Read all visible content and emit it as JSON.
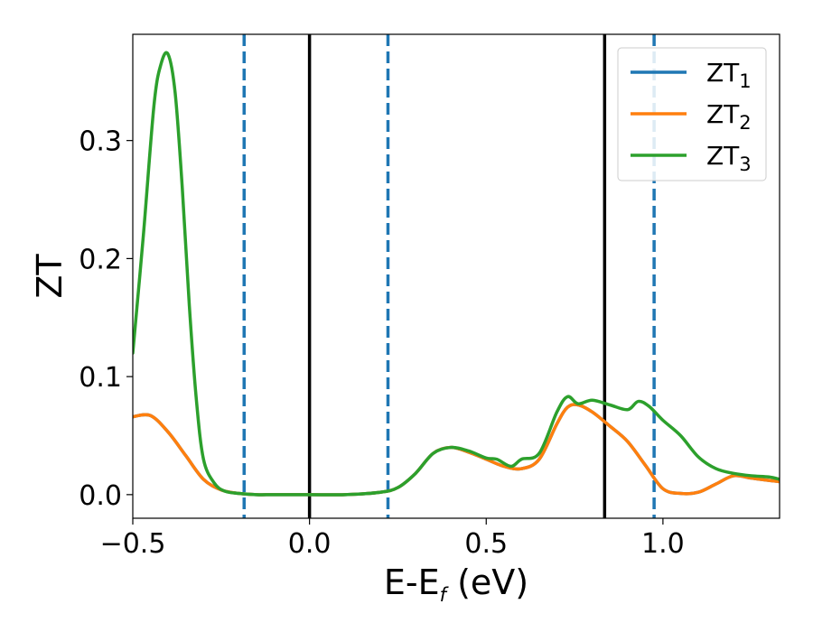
{
  "chart_data": {
    "type": "line",
    "xlabel": "E-E",
    "xlabel_sub": "f",
    "xlabel_unit": " (eV)",
    "ylabel": "ZT",
    "xlim": [
      -0.5,
      1.33
    ],
    "ylim": [
      -0.02,
      0.39
    ],
    "grid": false,
    "legend_position": "top-right",
    "x_ticks": [
      -0.5,
      0.0,
      0.5,
      1.0
    ],
    "x_tick_labels": [
      "−0.5",
      "0.0",
      "0.5",
      "1.0"
    ],
    "y_ticks": [
      0.0,
      0.1,
      0.2,
      0.3
    ],
    "y_tick_labels": [
      "0.0",
      "0.1",
      "0.2",
      "0.3"
    ],
    "series": [
      {
        "name": "ZT",
        "sub": "1",
        "color": "#1f77b4",
        "x": [
          -0.5,
          -0.45,
          -0.4,
          -0.35,
          -0.3,
          -0.25,
          -0.2,
          -0.15,
          -0.1,
          0,
          0.1,
          0.2,
          0.25,
          0.3,
          0.35,
          0.4,
          0.45,
          0.5,
          0.55,
          0.6,
          0.65,
          0.7,
          0.73,
          0.76,
          0.8,
          0.85,
          0.9,
          0.95,
          1.0,
          1.05,
          1.1,
          1.15,
          1.2,
          1.25,
          1.3,
          1.33
        ],
        "y": [
          0.066,
          0.067,
          0.053,
          0.033,
          0.013,
          0.004,
          0.001,
          0.0,
          0.0,
          0.0,
          0.0,
          0.002,
          0.006,
          0.018,
          0.035,
          0.04,
          0.036,
          0.03,
          0.024,
          0.022,
          0.03,
          0.06,
          0.074,
          0.076,
          0.07,
          0.058,
          0.045,
          0.025,
          0.005,
          0.001,
          0.002,
          0.009,
          0.016,
          0.014,
          0.012,
          0.011
        ]
      },
      {
        "name": "ZT",
        "sub": "2",
        "color": "#ff7f0e",
        "x": [
          -0.5,
          -0.45,
          -0.4,
          -0.35,
          -0.3,
          -0.25,
          -0.2,
          -0.15,
          -0.1,
          0,
          0.1,
          0.2,
          0.25,
          0.3,
          0.35,
          0.4,
          0.45,
          0.5,
          0.55,
          0.6,
          0.65,
          0.7,
          0.73,
          0.76,
          0.8,
          0.85,
          0.9,
          0.95,
          1.0,
          1.05,
          1.1,
          1.15,
          1.2,
          1.25,
          1.3,
          1.33
        ],
        "y": [
          0.066,
          0.067,
          0.053,
          0.033,
          0.013,
          0.004,
          0.001,
          0.0,
          0.0,
          0.0,
          0.0,
          0.002,
          0.006,
          0.018,
          0.035,
          0.04,
          0.036,
          0.03,
          0.024,
          0.022,
          0.03,
          0.06,
          0.074,
          0.076,
          0.07,
          0.058,
          0.045,
          0.025,
          0.005,
          0.001,
          0.002,
          0.009,
          0.016,
          0.014,
          0.012,
          0.011
        ]
      },
      {
        "name": "ZT",
        "sub": "3",
        "color": "#2ca02c",
        "x": [
          -0.5,
          -0.47,
          -0.44,
          -0.42,
          -0.4,
          -0.38,
          -0.36,
          -0.34,
          -0.32,
          -0.3,
          -0.27,
          -0.24,
          -0.2,
          -0.15,
          -0.1,
          0,
          0.1,
          0.2,
          0.25,
          0.3,
          0.35,
          0.4,
          0.45,
          0.5,
          0.53,
          0.57,
          0.6,
          0.65,
          0.7,
          0.73,
          0.76,
          0.8,
          0.85,
          0.9,
          0.93,
          0.96,
          1.0,
          1.05,
          1.1,
          1.15,
          1.2,
          1.25,
          1.3,
          1.33
        ],
        "y": [
          0.12,
          0.22,
          0.33,
          0.365,
          0.373,
          0.34,
          0.26,
          0.16,
          0.08,
          0.03,
          0.01,
          0.003,
          0.001,
          0.0,
          0.0,
          0.0,
          0.0,
          0.002,
          0.006,
          0.018,
          0.035,
          0.04,
          0.037,
          0.031,
          0.03,
          0.024,
          0.03,
          0.035,
          0.07,
          0.083,
          0.077,
          0.08,
          0.076,
          0.072,
          0.079,
          0.075,
          0.063,
          0.05,
          0.032,
          0.022,
          0.018,
          0.016,
          0.015,
          0.013
        ]
      }
    ],
    "vlines": [
      {
        "x": -0.185,
        "style": "dashed",
        "color": "#1f77b4"
      },
      {
        "x": 0.0,
        "style": "solid",
        "color": "#000000"
      },
      {
        "x": 0.222,
        "style": "dashed",
        "color": "#1f77b4"
      },
      {
        "x": 0.835,
        "style": "solid",
        "color": "#000000"
      },
      {
        "x": 0.975,
        "style": "dashed",
        "color": "#1f77b4"
      }
    ]
  }
}
